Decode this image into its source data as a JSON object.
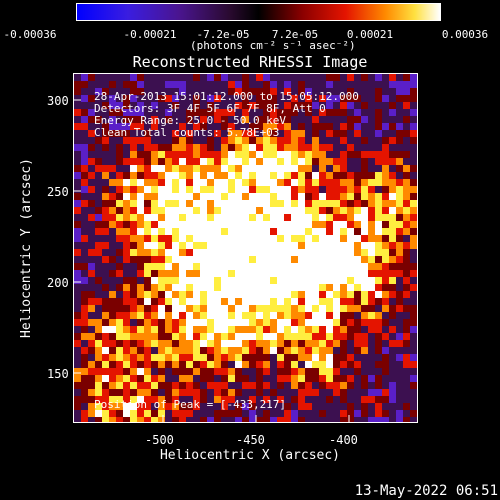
{
  "colorbar": {
    "ticks": [
      "-0.00036",
      "-0.00021",
      "-7.2e-05",
      "7.2e-05",
      "0.00021",
      "0.00036"
    ],
    "units": "(photons cm⁻² s⁻¹ asec⁻²)",
    "colors": [
      "#0000ff",
      "#5a1fc8",
      "#3c1050",
      "#000000",
      "#7a0000",
      "#e41400",
      "#ff8a00",
      "#ffee40",
      "#ffffff"
    ]
  },
  "title": "Reconstructed RHESSI Image",
  "annotations": {
    "time_range": "28-Apr-2013 15:01:12.000 to 15:05:12.000",
    "detectors": "Detectors: 3F 4F 5F 6F 7F 8F, Att 0",
    "energy": "Energy Range: 25.0 - 50.0 keV",
    "clean": "Clean     Total counts: 5.78E+03",
    "peak": "Position of Peak = [-433,217]"
  },
  "axes": {
    "xlabel": "Heliocentric X (arcsec)",
    "ylabel": "Heliocentric Y (arcsec)",
    "x_ticks": [
      "-500",
      "-450",
      "-400"
    ],
    "y_ticks": [
      "300",
      "250",
      "200",
      "150"
    ],
    "x_tick_values": [
      -500,
      -450,
      -400
    ],
    "y_tick_values": [
      300,
      250,
      200,
      150
    ]
  },
  "footer": {
    "date": "13-May-2022 06:51"
  }
}
